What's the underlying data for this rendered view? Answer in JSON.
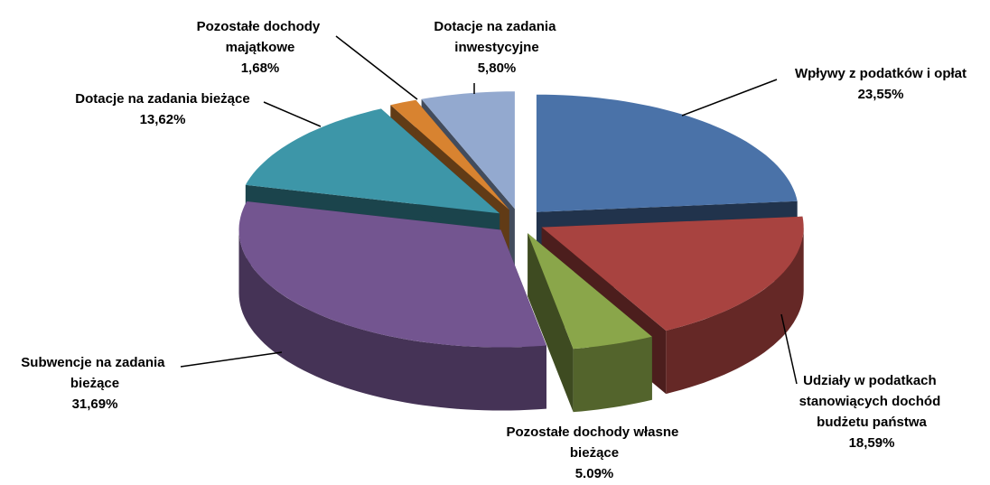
{
  "chart_data": {
    "type": "pie3d",
    "categories": [
      "Wpływy z podatków i opłat",
      "Udziały w podatkach stanowiących dochód budżetu państwa",
      "Pozostałe dochody własne bieżące",
      "Subwencje na zadania bieżące",
      "Dotacje na zadania bieżące",
      "Pozostałe dochody majątkowe",
      "Dotacje na zadania inwestycyjne"
    ],
    "values": [
      23.55,
      18.59,
      5.09,
      31.69,
      13.62,
      1.68,
      5.8
    ],
    "value_labels": [
      "23,55%",
      "18,59%",
      "5.09%",
      "31,69%",
      "13,62%",
      "1,68%",
      "5,80%"
    ],
    "colors": [
      "#4a72a8",
      "#a84340",
      "#8aa64a",
      "#735590",
      "#3d96a8",
      "#d88330",
      "#93a9cf"
    ]
  }
}
